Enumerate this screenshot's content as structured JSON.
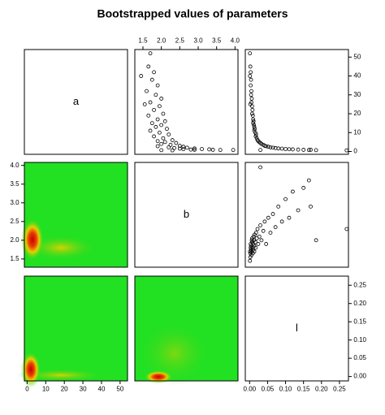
{
  "chart_data": {
    "type": "pairs",
    "title": "Bootstrapped values of parameters",
    "variables": [
      {
        "name": "a",
        "lim": [
          -1.5,
          54
        ],
        "ticks": [
          0,
          10,
          20,
          30,
          40,
          50
        ]
      },
      {
        "name": "b",
        "lim": [
          1.28,
          4.08
        ],
        "ticks": [
          1.5,
          {
            "value": 2,
            "label": "2.0"
          },
          2.5,
          {
            "value": 3,
            "label": "3.0"
          },
          3.5,
          {
            "value": 4,
            "label": "4.0"
          }
        ]
      },
      {
        "name": "l",
        "lim": [
          -0.012,
          0.275
        ],
        "ticks": [
          {
            "value": 0,
            "label": "0.00"
          },
          0.05,
          {
            "value": 0.1,
            "label": "0.10"
          },
          0.15,
          {
            "value": 0.2,
            "label": "0.20"
          },
          0.25
        ]
      }
    ],
    "samples": [
      [
        52,
        45,
        42,
        38,
        35,
        32,
        30,
        28,
        26,
        24,
        22,
        20,
        19,
        17,
        16,
        15,
        14,
        13,
        12,
        11,
        10,
        9,
        8,
        7,
        6,
        5.5,
        5,
        4.5,
        4,
        3.5,
        3,
        2.8,
        2.5,
        2.2,
        2,
        1.8,
        1.6,
        1.5,
        1.3,
        1.2,
        1.1,
        1,
        0.9,
        0.9,
        0.8,
        0.7,
        0.8,
        0.6,
        25,
        40
      ],
      [
        1.7,
        1.65,
        1.8,
        1.75,
        1.9,
        1.6,
        1.85,
        2,
        1.7,
        1.95,
        1.8,
        2.05,
        1.65,
        1.9,
        2.1,
        1.75,
        2,
        1.85,
        2.15,
        1.7,
        1.95,
        2.2,
        1.8,
        2.05,
        2.3,
        1.9,
        2.1,
        2.4,
        2,
        2.25,
        2.5,
        1.9,
        2.6,
        2.2,
        2.7,
        2.35,
        2.9,
        2.5,
        3.1,
        2.6,
        3.3,
        2.8,
        3.4,
        2.9,
        3.6,
        2,
        3.95,
        2.3,
        1.55,
        1.45
      ],
      [
        0.001,
        0.002,
        0.003,
        0.004,
        0.003,
        0.005,
        0.004,
        0.006,
        0.005,
        0.007,
        0.008,
        0.007,
        0.009,
        0.01,
        0.011,
        0.01,
        0.012,
        0.013,
        0.014,
        0.013,
        0.016,
        0.018,
        0.017,
        0.02,
        0.022,
        0.024,
        0.027,
        0.03,
        0.033,
        0.038,
        0.042,
        0.046,
        0.052,
        0.058,
        0.065,
        0.072,
        0.08,
        0.09,
        0.1,
        0.11,
        0.12,
        0.135,
        0.15,
        0.17,
        0.165,
        0.185,
        0.03,
        0.27,
        0.002,
        0.001
      ]
    ]
  }
}
